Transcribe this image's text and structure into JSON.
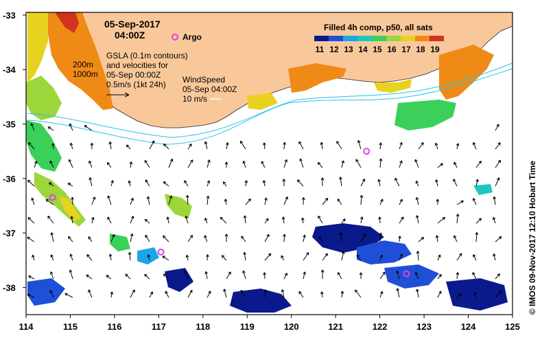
{
  "title": {
    "date": "05-Sep-2017",
    "time": "04:00Z"
  },
  "argo_legend": "Argo",
  "colorbar": {
    "title": "Filled 4h comp, p50, all sats",
    "ticks": [
      "11",
      "12",
      "13",
      "14",
      "15",
      "16",
      "17",
      "18",
      "19"
    ],
    "colors": [
      "#0a1a8c",
      "#1f4fd6",
      "#1aa6e8",
      "#19c9c0",
      "#3ad05a",
      "#9bd63a",
      "#e6d21f",
      "#f08a16",
      "#d2321e"
    ]
  },
  "isobaths": [
    "200m",
    "1000m"
  ],
  "gsla_note": {
    "line1": "GSLA (0.1m contours)",
    "line2": "and velocities for",
    "line3": "05-Sep 00:00Z",
    "line4": "0.5m/s (1kt 24h)"
  },
  "wind_note": {
    "line1": "WindSpeed",
    "line2": "05-Sep 04:00Z",
    "line3": "10 m/s"
  },
  "credit": "©  IMOS 09-Nov-2017 12:10 Hobart Time",
  "x_ticks": [
    "114",
    "115",
    "116",
    "117",
    "118",
    "119",
    "120",
    "121",
    "122",
    "123",
    "124",
    "125"
  ],
  "y_ticks": [
    "-33",
    "-34",
    "-35",
    "-36",
    "-37",
    "-38"
  ],
  "argo_floats": [
    {
      "lon": 121.7,
      "lat": -35.5
    },
    {
      "lon": 114.6,
      "lat": -36.35
    },
    {
      "lon": 117.05,
      "lat": -37.35
    },
    {
      "lon": 122.6,
      "lat": -37.75
    }
  ],
  "colors": {
    "land": "#f9c89a",
    "ocean": "#ffffff",
    "contour": "#20c8e8",
    "argo": "#e040e0"
  }
}
